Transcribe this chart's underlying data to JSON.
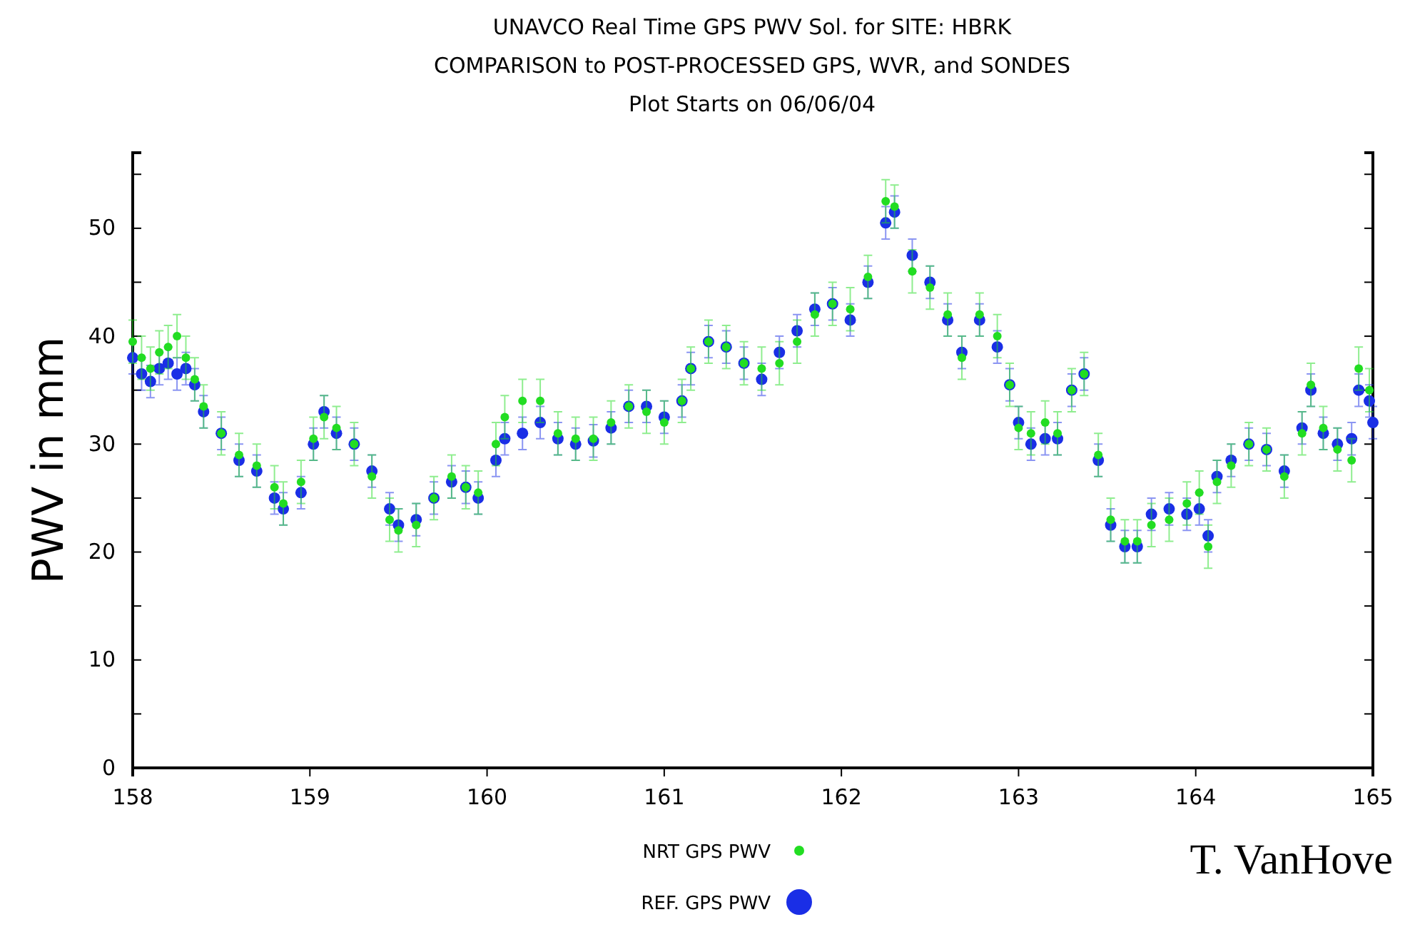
{
  "chart_data": {
    "type": "scatter",
    "title": "UNAVCO Real Time GPS PWV Sol. for SITE: HBRK",
    "subtitle": "COMPARISON to POST-PROCESSED GPS, WVR, and SONDES\nPlot Starts on 06/06/04",
    "ylabel": "PWV in mm",
    "xlim": [
      158,
      165
    ],
    "xticks": [
      158,
      159,
      160,
      161,
      162,
      163,
      164,
      165
    ],
    "ylim": [
      0,
      57
    ],
    "yticks": [
      0,
      {
        "value": 5,
        "label": null
      },
      10,
      {
        "value": 15,
        "label": null
      },
      20,
      {
        "value": 25,
        "label": null
      },
      30,
      {
        "value": 35,
        "label": null
      },
      40,
      {
        "value": 45,
        "label": null
      },
      50,
      {
        "value": 55,
        "label": null
      }
    ],
    "grid": false,
    "legend": "bottom",
    "marker": "circle",
    "annotations": [
      "T. VanHove"
    ],
    "series": [
      {
        "name": "NRT GPS PWV",
        "color": "#22dd22",
        "x": [
          158.0,
          158.05,
          158.1,
          158.15,
          158.2,
          158.25,
          158.3,
          158.35,
          158.4,
          158.5,
          158.6,
          158.7,
          158.8,
          158.85,
          158.95,
          159.02,
          159.08,
          159.15,
          159.25,
          159.35,
          159.45,
          159.5,
          159.6,
          159.7,
          159.8,
          159.88,
          159.95,
          160.05,
          160.1,
          160.2,
          160.3,
          160.4,
          160.5,
          160.6,
          160.7,
          160.8,
          160.9,
          161.0,
          161.1,
          161.15,
          161.25,
          161.35,
          161.45,
          161.55,
          161.65,
          161.75,
          161.85,
          161.95,
          162.05,
          162.15,
          162.25,
          162.3,
          162.4,
          162.5,
          162.6,
          162.68,
          162.78,
          162.88,
          162.95,
          163.0,
          163.07,
          163.15,
          163.22,
          163.3,
          163.37,
          163.45,
          163.52,
          163.6,
          163.67,
          163.75,
          163.85,
          163.95,
          164.02,
          164.07,
          164.12,
          164.2,
          164.3,
          164.4,
          164.5,
          164.6,
          164.65,
          164.72,
          164.8,
          164.88,
          164.92,
          164.98
        ],
        "values": [
          39.5,
          38,
          37,
          38.5,
          39,
          40,
          38,
          36,
          33.5,
          31,
          29,
          28,
          26,
          24.5,
          26.5,
          30.5,
          32.5,
          31.5,
          30,
          27,
          23,
          22,
          22.5,
          25,
          27,
          26,
          25.5,
          30,
          32.5,
          34,
          34,
          31,
          30.5,
          30.5,
          32,
          33.5,
          33,
          32,
          34,
          37,
          39.5,
          39,
          37.5,
          37,
          37.5,
          39.5,
          42,
          43,
          42.5,
          45.5,
          52.5,
          52,
          46,
          44.5,
          42,
          38,
          42,
          40,
          35.5,
          31.5,
          31,
          32,
          31,
          35,
          36.5,
          29,
          23,
          21,
          21,
          22.5,
          23,
          24.5,
          25.5,
          20.5,
          26.5,
          28,
          30,
          29.5,
          27,
          31,
          35.5,
          31.5,
          29.5,
          28.5,
          37,
          35
        ],
        "errors": [
          2,
          2,
          2,
          2,
          2,
          2,
          2,
          2,
          2,
          2,
          2,
          2,
          2,
          2,
          2,
          2,
          2,
          2,
          2,
          2,
          2,
          2,
          2,
          2,
          2,
          2,
          2,
          2,
          2,
          2,
          2,
          2,
          2,
          2,
          2,
          2,
          2,
          2,
          2,
          2,
          2,
          2,
          2,
          2,
          2,
          2,
          2,
          2,
          2,
          2,
          2,
          2,
          2,
          2,
          2,
          2,
          2,
          2,
          2,
          2,
          2,
          2,
          2,
          2,
          2,
          2,
          2,
          2,
          2,
          2,
          2,
          2,
          2,
          2,
          2,
          2,
          2,
          2,
          2,
          2,
          2,
          2,
          2,
          2,
          2,
          2
        ]
      },
      {
        "name": "REF. GPS PWV",
        "color": "#1a2ee6",
        "x": [
          158.0,
          158.05,
          158.1,
          158.15,
          158.2,
          158.25,
          158.3,
          158.35,
          158.4,
          158.5,
          158.6,
          158.7,
          158.8,
          158.85,
          158.95,
          159.02,
          159.08,
          159.15,
          159.25,
          159.35,
          159.45,
          159.5,
          159.6,
          159.7,
          159.8,
          159.88,
          159.95,
          160.05,
          160.1,
          160.2,
          160.3,
          160.4,
          160.5,
          160.6,
          160.7,
          160.8,
          160.9,
          161.0,
          161.1,
          161.15,
          161.25,
          161.35,
          161.45,
          161.55,
          161.65,
          161.75,
          161.85,
          161.95,
          162.05,
          162.15,
          162.25,
          162.3,
          162.4,
          162.5,
          162.6,
          162.68,
          162.78,
          162.88,
          162.95,
          163.0,
          163.07,
          163.15,
          163.22,
          163.3,
          163.37,
          163.45,
          163.52,
          163.6,
          163.67,
          163.75,
          163.85,
          163.95,
          164.02,
          164.07,
          164.12,
          164.2,
          164.3,
          164.4,
          164.5,
          164.6,
          164.65,
          164.72,
          164.8,
          164.88,
          164.92,
          164.98,
          165.0
        ],
        "values": [
          38,
          36.5,
          35.8,
          37,
          37.5,
          36.5,
          37,
          35.5,
          33,
          31,
          28.5,
          27.5,
          25,
          24,
          25.5,
          30,
          33,
          31,
          30,
          27.5,
          24,
          22.5,
          23,
          25,
          26.5,
          26,
          25,
          28.5,
          30.5,
          31,
          32,
          30.5,
          30,
          30.3,
          31.5,
          33.5,
          33.5,
          32.5,
          34,
          37,
          39.5,
          39,
          37.5,
          36,
          38.5,
          40.5,
          42.5,
          43,
          41.5,
          45,
          50.5,
          51.5,
          47.5,
          45,
          41.5,
          38.5,
          41.5,
          39,
          35.5,
          32,
          30,
          30.5,
          30.5,
          35,
          36.5,
          28.5,
          22.5,
          20.5,
          20.5,
          23.5,
          24,
          23.5,
          24,
          21.5,
          27,
          28.5,
          30,
          29.5,
          27.5,
          31.5,
          35,
          31,
          30,
          30.5,
          35,
          34,
          32
        ],
        "errors": [
          1.5,
          1.5,
          1.5,
          1.5,
          1.5,
          1.5,
          1.5,
          1.5,
          1.5,
          1.5,
          1.5,
          1.5,
          1.5,
          1.5,
          1.5,
          1.5,
          1.5,
          1.5,
          1.5,
          1.5,
          1.5,
          1.5,
          1.5,
          1.5,
          1.5,
          1.5,
          1.5,
          1.5,
          1.5,
          1.5,
          1.5,
          1.5,
          1.5,
          1.5,
          1.5,
          1.5,
          1.5,
          1.5,
          1.5,
          1.5,
          1.5,
          1.5,
          1.5,
          1.5,
          1.5,
          1.5,
          1.5,
          1.5,
          1.5,
          1.5,
          1.5,
          1.5,
          1.5,
          1.5,
          1.5,
          1.5,
          1.5,
          1.5,
          1.5,
          1.5,
          1.5,
          1.5,
          1.5,
          1.5,
          1.5,
          1.5,
          1.5,
          1.5,
          1.5,
          1.5,
          1.5,
          1.5,
          1.5,
          1.5,
          1.5,
          1.5,
          1.5,
          1.5,
          1.5,
          1.5,
          1.5,
          1.5,
          1.5,
          1.5,
          1.5,
          1.5,
          1.5
        ]
      }
    ]
  }
}
